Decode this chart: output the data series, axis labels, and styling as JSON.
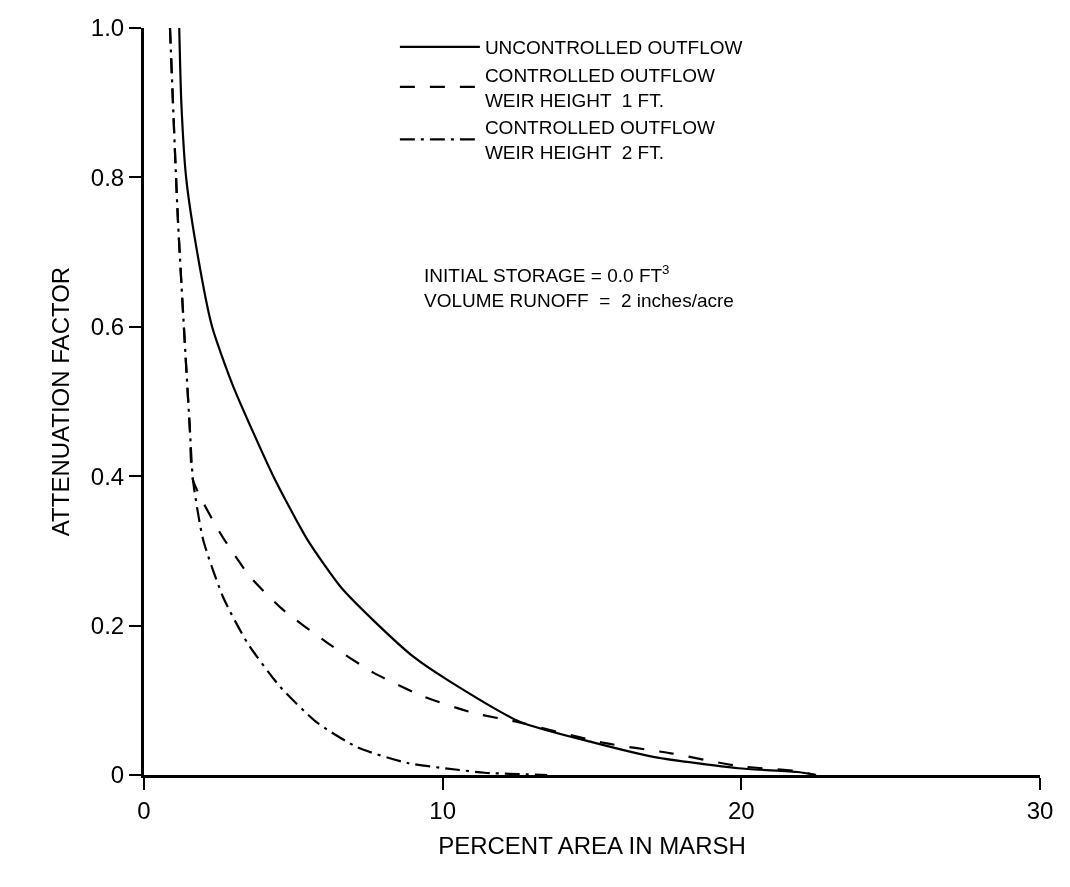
{
  "chart_data": {
    "type": "line",
    "xlabel": "PERCENT AREA IN MARSH",
    "ylabel": "ATTENUATION FACTOR",
    "xlim": [
      0,
      30
    ],
    "xticks": [
      0,
      10,
      20,
      30
    ],
    "ylim": [
      0,
      1.0
    ],
    "yticks": [
      {
        "value": 0,
        "label": "0"
      },
      0.2,
      0.4,
      0.6,
      0.8,
      {
        "value": 1.0,
        "label": "1.0"
      }
    ],
    "grid": false,
    "legend": "top right",
    "marker": "none",
    "series": [
      {
        "name": "UNCONTROLLED OUTFLOW",
        "color": "#000000",
        "line_style": "solid",
        "x": [
          1.18,
          1.25,
          1.41,
          1.78,
          2.28,
          2.99,
          4.33,
          5.47,
          6.58,
          7.68,
          9.03,
          10.17,
          12.6,
          15.0,
          17.1,
          19.9,
          21.9,
          22.5
        ],
        "values": [
          1.0,
          0.9,
          0.8,
          0.7,
          0.6,
          0.52,
          0.4,
          0.315,
          0.252,
          0.207,
          0.158,
          0.127,
          0.071,
          0.044,
          0.024,
          0.009,
          0.004,
          0.0
        ]
      },
      {
        "name": "CONTROLLED OUTFLOW\nWEIR HEIGHT  1 FT.",
        "color": "#000000",
        "line_style": "dashed",
        "x": [
          0.87,
          1.14,
          1.54,
          1.64,
          2.55,
          3.56,
          4.66,
          6.14,
          7.68,
          9.36,
          11.04,
          12.5,
          15.4,
          17.65,
          19.9,
          21.9,
          22.5
        ],
        "values": [
          1.0,
          0.74,
          0.46,
          0.395,
          0.324,
          0.265,
          0.221,
          0.177,
          0.137,
          0.105,
          0.083,
          0.071,
          0.043,
          0.029,
          0.012,
          0.005,
          0.0
        ]
      },
      {
        "name": "CONTROLLED OUTFLOW\nWEIR HEIGHT  2 FT.",
        "color": "#000000",
        "line_style": "dashdot",
        "x": [
          0.87,
          1.14,
          1.54,
          1.64,
          1.98,
          2.65,
          3.46,
          4.56,
          5.8,
          7.15,
          8.83,
          10.5,
          11.4,
          13.5
        ],
        "values": [
          1.0,
          0.74,
          0.46,
          0.395,
          0.315,
          0.238,
          0.177,
          0.118,
          0.07,
          0.037,
          0.016,
          0.007,
          0.003,
          0.0
        ]
      }
    ],
    "annotations": [
      "INITIAL STORAGE = 0.0 FT$^{3}$\nVOLUME RUNOFF  =  2 inches/acre"
    ]
  }
}
